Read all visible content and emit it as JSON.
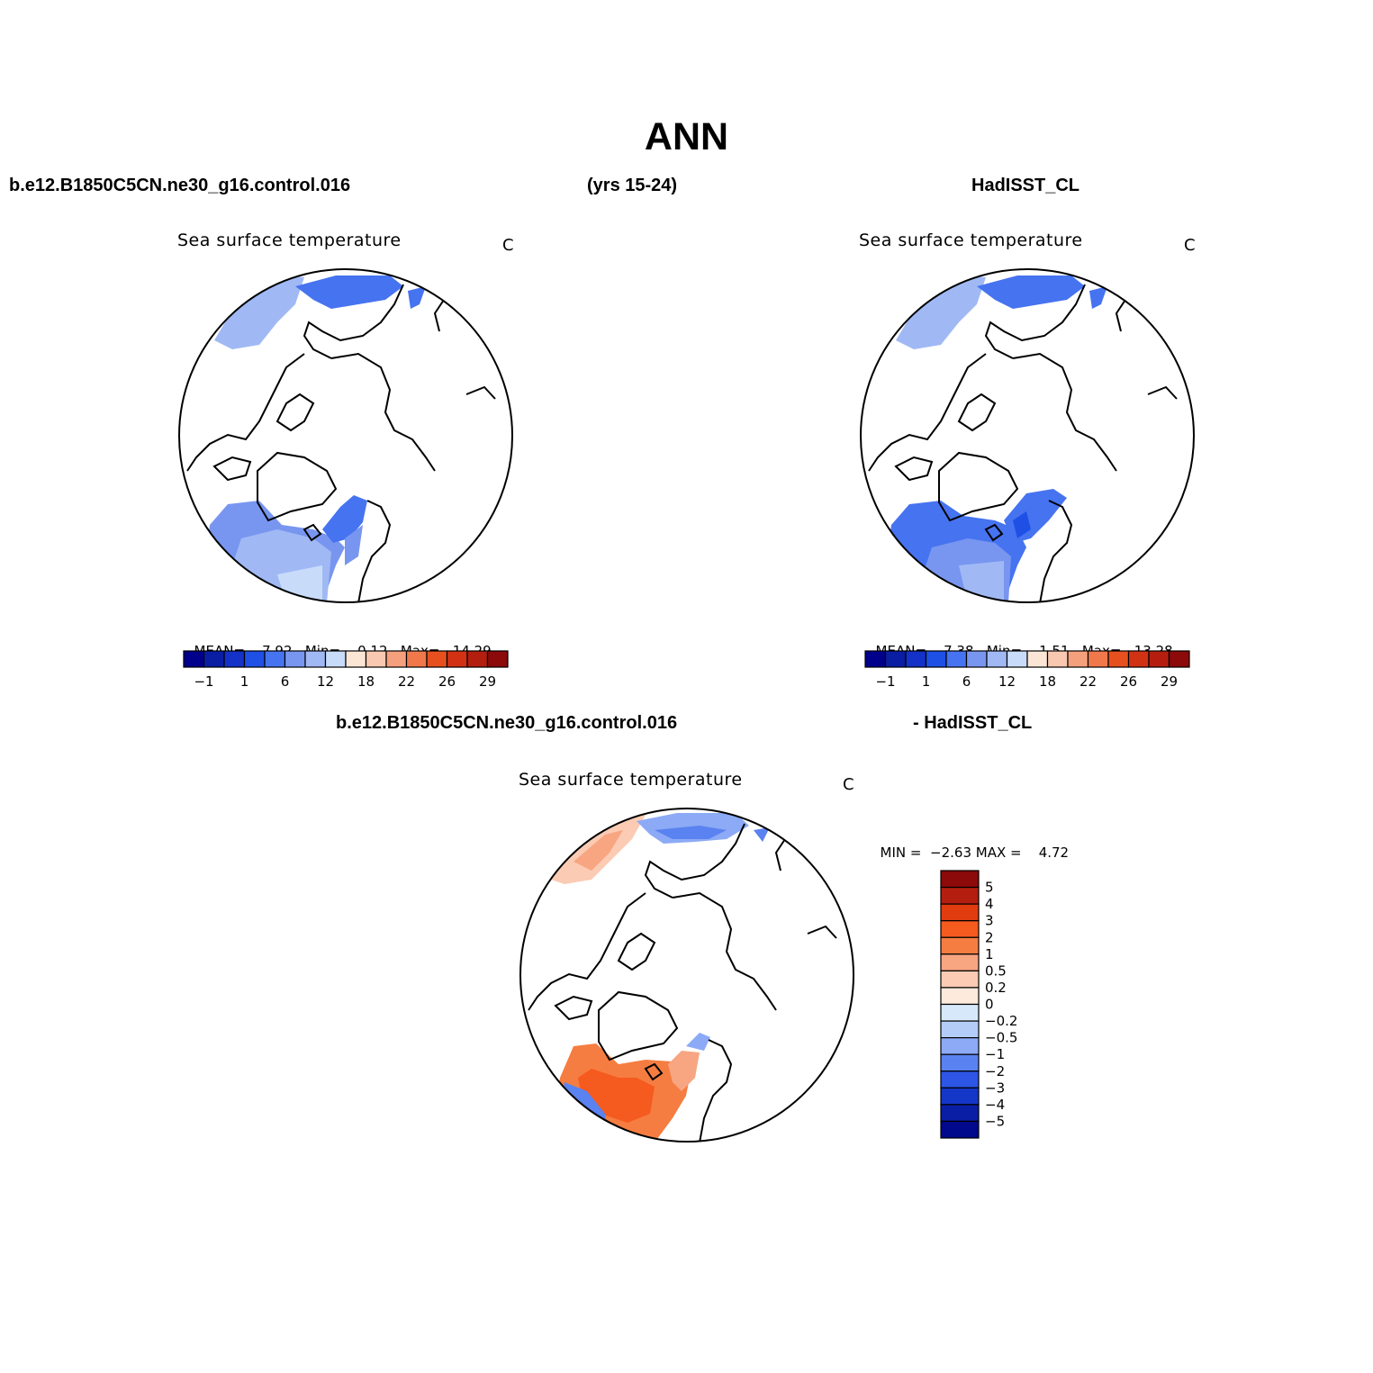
{
  "figure": {
    "title": "ANN",
    "case_name": "b.e12.B1850C5CN.ne30_g16.control.016",
    "years": "(yrs 15-24)",
    "obs_name": "HadISST_CL",
    "diff_left": "b.e12.B1850C5CN.ne30_g16.control.016",
    "diff_right": "- HadISST_CL"
  },
  "panels": {
    "model": {
      "title": "Sea surface temperature",
      "unit": "C",
      "mean_label": "MEAN=",
      "mean": "7.92",
      "min_label": "Min=",
      "min": "0.12",
      "max_label": "Max=",
      "max": "14.29"
    },
    "obs": {
      "title": "Sea surface temperature",
      "unit": "C",
      "mean_label": "MEAN=",
      "mean": "7.38",
      "min_label": "Min=",
      "min": "1.51",
      "max_label": "Max=",
      "max": "13.28"
    },
    "diff": {
      "title": "Sea surface temperature",
      "unit": "C",
      "min_label": "MIN =",
      "min": "−2.63",
      "max_label": "MAX =",
      "max": "4.72"
    }
  },
  "colorbar_main": {
    "colors": [
      "#00008b",
      "#0a1ea3",
      "#1432c8",
      "#1e50e6",
      "#4673f0",
      "#7896f0",
      "#a0b9f5",
      "#c8dcfa",
      "#fbe6d6",
      "#f8c8b0",
      "#f5a07d",
      "#f0784b",
      "#e6501e",
      "#d23214",
      "#b41e0f",
      "#8c0a0a"
    ],
    "tick_labels": [
      "−1",
      "1",
      "6",
      "12",
      "18",
      "22",
      "26",
      "29"
    ]
  },
  "colorbar_diff": {
    "colors": [
      "#8c0a0a",
      "#b41e0f",
      "#e03c0f",
      "#f55a1e",
      "#f57d41",
      "#f8a582",
      "#fbcbb4",
      "#fdeadc",
      "#d7e8fb",
      "#b4cdf8",
      "#8caaf5",
      "#5a82f0",
      "#2d55e6",
      "#1437c8",
      "#0a1ea5",
      "#00088c"
    ],
    "tick_labels": [
      "5",
      "4",
      "3",
      "2",
      "1",
      "0.5",
      "0.2",
      "0",
      "−0.2",
      "−0.5",
      "−1",
      "−2",
      "−3",
      "−4",
      "−5"
    ]
  }
}
